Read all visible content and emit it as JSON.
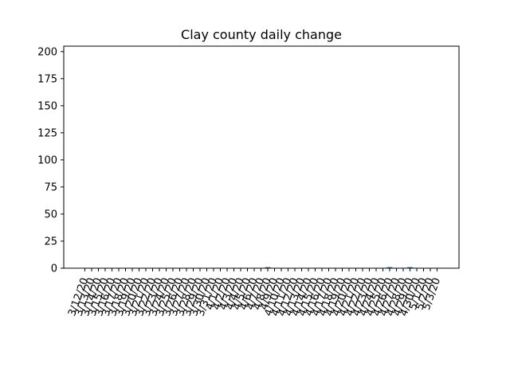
{
  "chart_data": {
    "type": "bar",
    "title": "Clay county daily change",
    "xlabel": "",
    "ylabel": "",
    "ylim": [
      0,
      205
    ],
    "yticks": [
      0,
      25,
      50,
      75,
      100,
      125,
      150,
      175,
      200
    ],
    "grid": false,
    "bar_color": "#1f77b4",
    "categories": [
      "3/12/20",
      "3/13/20",
      "3/14/20",
      "3/15/20",
      "3/16/20",
      "3/17/20",
      "3/18/20",
      "3/19/20",
      "3/20/20",
      "3/21/20",
      "3/22/20",
      "3/23/20",
      "3/24/20",
      "3/25/20",
      "3/26/20",
      "3/27/20",
      "3/28/20",
      "3/29/20",
      "3/30/20",
      "3/31/20",
      "4/1/20",
      "4/2/20",
      "4/3/20",
      "4/4/20",
      "4/5/20",
      "4/6/20",
      "4/7/20",
      "4/8/20",
      "4/9/20",
      "4/10/20",
      "4/11/20",
      "4/12/20",
      "4/13/20",
      "4/14/20",
      "4/15/20",
      "4/16/20",
      "4/17/20",
      "4/18/20",
      "4/19/20",
      "4/20/20",
      "4/21/20",
      "4/22/20",
      "4/23/20",
      "4/24/20",
      "4/25/20",
      "4/26/20",
      "4/27/20",
      "4/28/20",
      "4/29/20",
      "4/30/20",
      "5/1/20",
      "5/2/20",
      "5/3/20"
    ],
    "values": [
      0,
      0,
      0,
      0,
      0,
      0,
      0,
      0,
      0,
      0,
      0,
      0,
      0,
      0,
      0,
      0,
      0,
      0,
      0,
      0,
      0,
      0,
      0,
      0,
      0,
      0,
      0,
      1,
      0,
      0,
      0,
      0,
      0,
      0,
      0,
      0,
      0,
      0,
      0,
      0,
      0,
      0,
      0,
      0,
      0,
      1,
      0,
      0,
      1,
      0,
      0,
      0,
      0
    ]
  }
}
